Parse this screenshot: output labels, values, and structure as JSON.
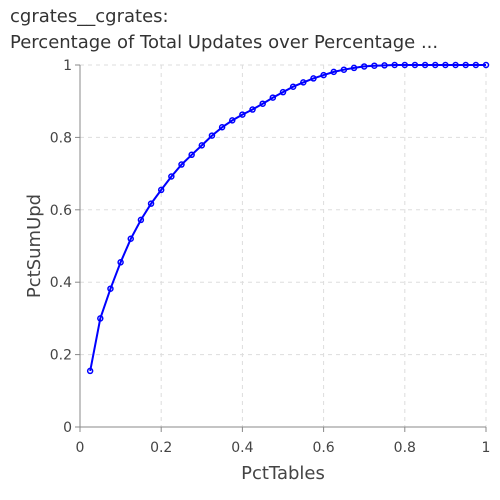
{
  "chart_data": {
    "type": "line",
    "title": "cgrates__cgrates:",
    "subtitle": "Percentage of Total Updates over Percentage ...",
    "xlabel": "PctTables",
    "ylabel": "PctSumUpd",
    "xlim": [
      0,
      1
    ],
    "ylim": [
      0,
      1
    ],
    "xticks": [
      "0",
      "0.2",
      "0.4",
      "0.6",
      "0.8",
      "1"
    ],
    "yticks": [
      "0",
      "0.2",
      "0.4",
      "0.6",
      "0.8",
      "1"
    ],
    "grid": true,
    "series": [
      {
        "color": "#0000ff",
        "x": [
          0.025,
          0.05,
          0.075,
          0.1,
          0.125,
          0.15,
          0.175,
          0.2,
          0.225,
          0.25,
          0.275,
          0.3,
          0.325,
          0.35,
          0.375,
          0.4,
          0.425,
          0.45,
          0.475,
          0.5,
          0.525,
          0.55,
          0.575,
          0.6,
          0.625,
          0.65,
          0.675,
          0.7,
          0.725,
          0.75,
          0.775,
          0.8,
          0.825,
          0.85,
          0.875,
          0.9,
          0.925,
          0.95,
          0.975,
          1.0
        ],
        "y": [
          0.155,
          0.3,
          0.382,
          0.455,
          0.52,
          0.572,
          0.617,
          0.655,
          0.692,
          0.725,
          0.752,
          0.778,
          0.805,
          0.828,
          0.847,
          0.863,
          0.877,
          0.893,
          0.91,
          0.925,
          0.94,
          0.952,
          0.963,
          0.972,
          0.981,
          0.987,
          0.992,
          0.996,
          0.998,
          0.999,
          1.0,
          1.0,
          1.0,
          1.0,
          1.0,
          1.0,
          1.0,
          1.0,
          1.0,
          1.0
        ]
      }
    ]
  }
}
